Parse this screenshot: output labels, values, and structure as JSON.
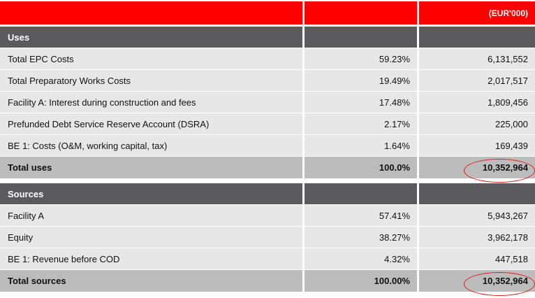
{
  "header": {
    "col1": "",
    "col2": "",
    "col3": "(EUR'000)"
  },
  "uses": {
    "title": "Uses",
    "rows": [
      {
        "label": "Total EPC Costs",
        "pct": "59.23%",
        "value": "6,131,552"
      },
      {
        "label": "Total Preparatory Works Costs",
        "pct": "19.49%",
        "value": "2,017,517"
      },
      {
        "label": "Facility A: Interest during construction and fees",
        "pct": "17.48%",
        "value": "1,809,456"
      },
      {
        "label": "Prefunded Debt Service Reserve Account (DSRA)",
        "pct": "2.17%",
        "value": "225,000"
      },
      {
        "label": "BE 1: Costs (O&M, working capital, tax)",
        "pct": "1.64%",
        "value": "169,439"
      }
    ],
    "total": {
      "label": "Total uses",
      "pct": "100.0%",
      "value": "10,352,964"
    }
  },
  "sources": {
    "title": "Sources",
    "rows": [
      {
        "label": "Facility A",
        "pct": "57.41%",
        "value": "5,943,267"
      },
      {
        "label": "Equity",
        "pct": "38.27%",
        "value": "3,962,178"
      },
      {
        "label": "BE 1: Revenue before COD",
        "pct": "4.32%",
        "value": "447,518"
      }
    ],
    "total": {
      "label": "Total sources",
      "pct": "100.00%",
      "value": "10,352,964"
    }
  },
  "colors": {
    "header": "#ff0000",
    "section": "#5b5b5e",
    "row": "#e7e7e7",
    "total": "#bcbcbc",
    "highlight": "#e31b1b"
  }
}
